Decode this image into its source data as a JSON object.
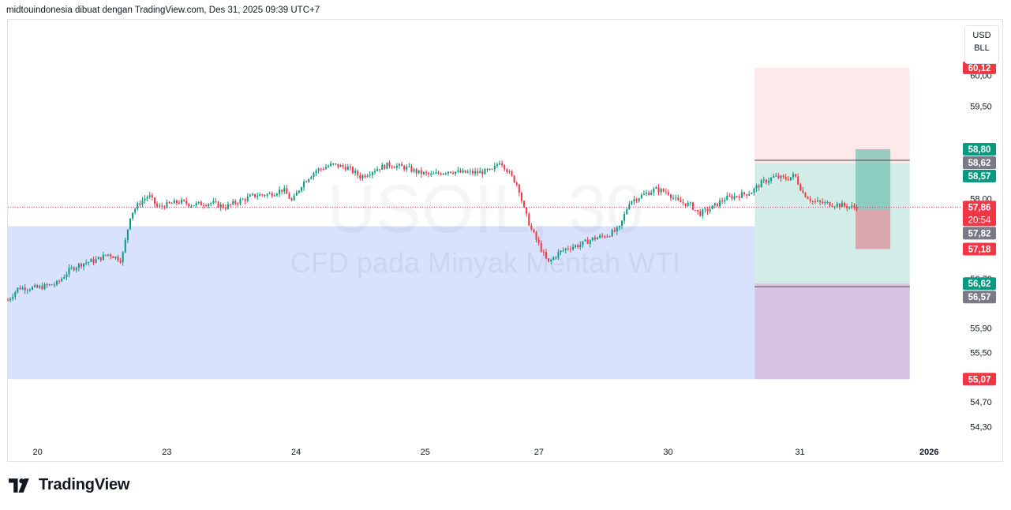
{
  "header": {
    "text": "midtouindonesia dibuat dengan TradingView.com, Des 31, 2025 09:39 UTC+7"
  },
  "unit_box": {
    "currency": "USD",
    "unit": "BLL"
  },
  "brand": {
    "name": "TradingView"
  },
  "watermark": {
    "symbol": "USOIL, 30",
    "description": "CFD pada Minyak Mentah WTI"
  },
  "colors": {
    "up": "#089981",
    "down": "#f23645",
    "price_line": "#f23645",
    "blue_zone": "#d8e2fd",
    "pink_zone": "#fde8ea",
    "green_zone": "#d2ede8",
    "purple_zone": "#d8c3e2",
    "gray_label": "#787b86",
    "teal_box": "#5fbca8",
    "red_box": "#e07c8a"
  },
  "chart_data": {
    "type": "candlestick",
    "symbol": "USOIL",
    "timeframe": "30",
    "y_axis": {
      "range": [
        54.1,
        60.9
      ],
      "ticks": [
        "60,00",
        "59,50",
        "58,00",
        "56,70",
        "55,90",
        "55,50",
        "54,70",
        "54,30"
      ],
      "tick_values": [
        60.0,
        59.5,
        58.0,
        56.7,
        55.9,
        55.5,
        54.7,
        54.3
      ]
    },
    "x_axis": {
      "ticks": [
        {
          "label": "20",
          "pos": 0.0
        },
        {
          "label": "23",
          "pos": 1.0
        },
        {
          "label": "24",
          "pos": 2.0
        },
        {
          "label": "25",
          "pos": 3.0
        },
        {
          "label": "27",
          "pos": 3.88
        },
        {
          "label": "30",
          "pos": 4.88
        },
        {
          "label": "31",
          "pos": 5.9
        },
        {
          "label": "2026",
          "pos": 6.9
        }
      ],
      "range": [
        -0.23,
        7.1
      ]
    },
    "price_path": [
      [
        -0.23,
        56.35
      ],
      [
        -0.15,
        56.55
      ],
      [
        0.0,
        56.55
      ],
      [
        0.15,
        56.62
      ],
      [
        0.25,
        56.85
      ],
      [
        0.35,
        56.95
      ],
      [
        0.45,
        57.0
      ],
      [
        0.55,
        57.1
      ],
      [
        0.65,
        57.0
      ],
      [
        0.72,
        57.75
      ],
      [
        0.8,
        57.95
      ],
      [
        0.86,
        58.05
      ],
      [
        0.93,
        57.85
      ],
      [
        1.0,
        57.9
      ],
      [
        1.1,
        57.95
      ],
      [
        1.2,
        57.9
      ],
      [
        1.35,
        57.93
      ],
      [
        1.45,
        57.86
      ],
      [
        1.55,
        57.95
      ],
      [
        1.68,
        58.05
      ],
      [
        1.8,
        58.07
      ],
      [
        1.9,
        58.15
      ],
      [
        1.97,
        57.95
      ],
      [
        2.05,
        58.25
      ],
      [
        2.15,
        58.45
      ],
      [
        2.28,
        58.55
      ],
      [
        2.4,
        58.5
      ],
      [
        2.5,
        58.35
      ],
      [
        2.62,
        58.48
      ],
      [
        2.72,
        58.55
      ],
      [
        2.85,
        58.5
      ],
      [
        2.95,
        58.42
      ],
      [
        3.05,
        58.38
      ],
      [
        3.18,
        58.45
      ],
      [
        3.28,
        58.42
      ],
      [
        3.4,
        58.42
      ],
      [
        3.52,
        58.45
      ],
      [
        3.58,
        58.62
      ],
      [
        3.66,
        58.38
      ],
      [
        3.72,
        58.2
      ],
      [
        3.76,
        57.85
      ],
      [
        3.82,
        57.5
      ],
      [
        3.88,
        57.25
      ],
      [
        3.95,
        56.95
      ],
      [
        4.02,
        57.1
      ],
      [
        4.1,
        57.2
      ],
      [
        4.2,
        57.25
      ],
      [
        4.3,
        57.35
      ],
      [
        4.4,
        57.4
      ],
      [
        4.5,
        57.5
      ],
      [
        4.58,
        57.95
      ],
      [
        4.68,
        58.05
      ],
      [
        4.78,
        58.15
      ],
      [
        4.88,
        58.1
      ],
      [
        4.95,
        57.95
      ],
      [
        5.05,
        57.9
      ],
      [
        5.12,
        57.75
      ],
      [
        5.22,
        57.85
      ],
      [
        5.32,
        58.0
      ],
      [
        5.42,
        58.05
      ],
      [
        5.52,
        58.1
      ],
      [
        5.6,
        58.25
      ],
      [
        5.7,
        58.35
      ],
      [
        5.8,
        58.32
      ],
      [
        5.86,
        58.38
      ],
      [
        5.92,
        58.1
      ],
      [
        6.0,
        57.95
      ],
      [
        6.1,
        57.92
      ],
      [
        6.2,
        57.9
      ],
      [
        6.3,
        57.86
      ],
      [
        6.34,
        57.86
      ]
    ],
    "levels": [
      {
        "label": "60,12",
        "value": 60.12,
        "style": "down"
      },
      {
        "label": "58,80",
        "value": 58.8,
        "style": "up"
      },
      {
        "label": "58,62",
        "value": 58.62,
        "style": "gray"
      },
      {
        "label": "58,57",
        "value": 58.57,
        "style": "up"
      },
      {
        "label": "57,86",
        "value": 57.86,
        "style": "down",
        "sub": "20:54"
      },
      {
        "label": "57,82",
        "value": 57.82,
        "style": "gray"
      },
      {
        "label": "57,18",
        "value": 57.18,
        "style": "down"
      },
      {
        "label": "56,62",
        "value": 56.62,
        "style": "up"
      },
      {
        "label": "56,57",
        "value": 56.57,
        "style": "gray"
      },
      {
        "label": "55,07",
        "value": 55.07,
        "style": "down"
      }
    ],
    "current_price": 57.86,
    "zones": [
      {
        "kind": "blue",
        "y_top": 57.55,
        "y_bottom": 55.07,
        "x_from": -0.23,
        "x_to": 6.75
      },
      {
        "kind": "pink",
        "y_top": 60.12,
        "y_bottom": 58.57,
        "x_from": 5.55,
        "x_to": 6.75
      },
      {
        "kind": "green",
        "y_top": 58.57,
        "y_bottom": 56.62,
        "x_from": 5.55,
        "x_to": 6.75
      },
      {
        "kind": "purple",
        "y_top": 56.62,
        "y_bottom": 55.07,
        "x_from": 5.55,
        "x_to": 6.75
      },
      {
        "kind": "teal",
        "y_top": 58.8,
        "y_bottom": 57.82,
        "x_from": 6.33,
        "x_to": 6.6
      },
      {
        "kind": "red",
        "y_top": 57.82,
        "y_bottom": 57.18,
        "x_from": 6.33,
        "x_to": 6.6
      }
    ],
    "lines": [
      {
        "value": 58.62,
        "x_from": 5.55,
        "x_to": 6.75
      },
      {
        "value": 56.57,
        "x_from": 5.55,
        "x_to": 6.75
      }
    ]
  }
}
